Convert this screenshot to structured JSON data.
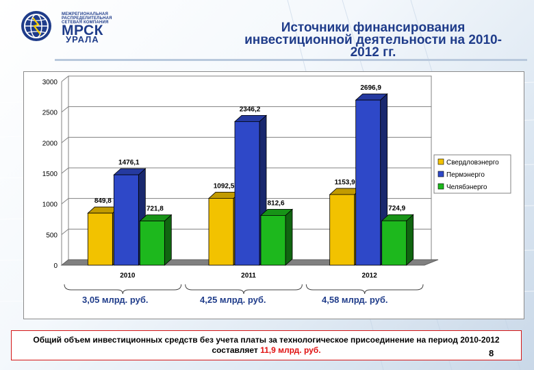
{
  "logo": {
    "tagline": "МЕЖРЕГИОНАЛЬНАЯ РАСПРЕДЕЛИТЕЛЬНАЯ СЕТЕВАЯ КОМПАНИЯ",
    "name": "МРСК",
    "region": "УРАЛА",
    "colors": {
      "primary": "#1f3c8a"
    }
  },
  "title": {
    "line1": "Источники финансирования",
    "line2": "инвестиционной деятельности на 2010-",
    "line3": "2012 гг."
  },
  "chart_data": {
    "type": "bar",
    "categories": [
      "2010",
      "2011",
      "2012"
    ],
    "series": [
      {
        "name": "Свердловэнерго",
        "values": [
          849.8,
          1092.5,
          1153.9
        ],
        "labels": [
          "849,8",
          "1092,5",
          "1153,9"
        ],
        "color": "#f2c200"
      },
      {
        "name": "Пермэнерго",
        "values": [
          1476.1,
          2346.2,
          2696.9
        ],
        "labels": [
          "1476,1",
          "2346,2",
          "2696,9"
        ],
        "color": "#2e48c8"
      },
      {
        "name": "Челябэнерго",
        "values": [
          721.8,
          812.6,
          724.9
        ],
        "labels": [
          "721,8",
          "812,6",
          "724,9"
        ],
        "color": "#1db81d"
      }
    ],
    "ylim": [
      0,
      3000
    ],
    "yticks": [
      "0",
      "500",
      "1000",
      "1500",
      "2000",
      "2500",
      "3000"
    ],
    "grid": true,
    "legend_position": "right",
    "three_d": true
  },
  "totals": [
    "3,05 млрд. руб.",
    "4,25 млрд. руб.",
    "4,58 млрд. руб."
  ],
  "footer": {
    "text_before": "Общий объем инвестиционных средств без учета платы за технологическое присоединение на период 2010-2012 составляет ",
    "highlight": "11,9 млрд. руб.",
    "highlight_color": "#e01010"
  },
  "page_number": "8"
}
